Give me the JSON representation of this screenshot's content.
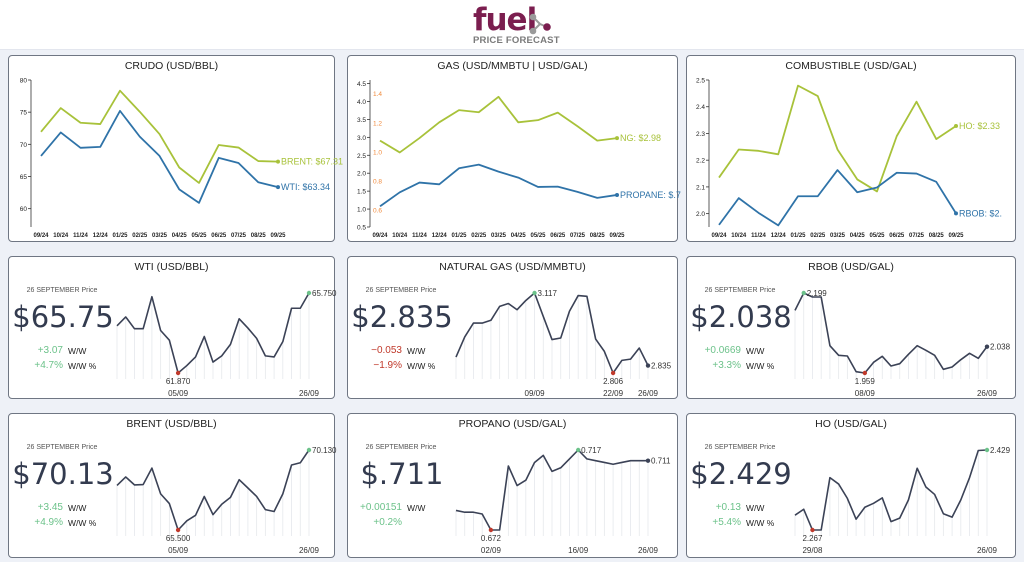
{
  "header": {
    "logo_text": "fuel",
    "logo_subtitle": "PRICE FORECAST",
    "logo_color": "#7b1e4f"
  },
  "colors": {
    "green_series": "#a8c23a",
    "blue_series": "#2f73a8",
    "spark_line": "#3b4256",
    "right_axis": "#f08a3c",
    "up": "#6cc28a",
    "down": "#c0392b"
  },
  "chart_data": [
    {
      "type": "line",
      "title": "CRUDO (USD/BBL)",
      "categories": [
        "09/24",
        "10/24",
        "11/24",
        "12/24",
        "01/25",
        "02/25",
        "03/25",
        "04/25",
        "05/25",
        "06/25",
        "07/25",
        "08/25",
        "09/25"
      ],
      "yticks": [
        60,
        65,
        70,
        75,
        80
      ],
      "ylim": [
        57.15,
        80
      ],
      "series": [
        {
          "name": "BRENT",
          "end_label": "BRENT: $67.31",
          "color": "#a8c23a",
          "values": [
            71.95,
            75.64,
            73.35,
            73.15,
            78.34,
            75.07,
            71.6,
            66.4,
            64.0,
            69.9,
            69.5,
            67.4,
            67.31
          ]
        },
        {
          "name": "WTI",
          "end_label": "WTI: $63.34",
          "color": "#2f73a8",
          "values": [
            68.2,
            71.85,
            69.46,
            69.6,
            75.2,
            71.2,
            68.2,
            63.0,
            60.9,
            67.9,
            67.1,
            64.1,
            63.34
          ]
        }
      ]
    },
    {
      "type": "line",
      "title": "GAS (USD/MMBTU | USD/GAL)",
      "categories": [
        "09/24",
        "10/24",
        "11/24",
        "12/24",
        "01/25",
        "02/25",
        "03/25",
        "04/25",
        "05/25",
        "06/25",
        "07/25",
        "08/25",
        "09/25"
      ],
      "yticks": [
        "0.5",
        "1.0",
        "1.5",
        "2.0",
        "2.5",
        "3.0",
        "3.5",
        "4.0",
        "4.5"
      ],
      "ylim": [
        0.5,
        4.6
      ],
      "y2ticks": [
        "0.6",
        "0.8",
        "1.0",
        "1.2",
        "1.4"
      ],
      "y2lim": [
        0.485,
        1.494
      ],
      "series": [
        {
          "name": "NG",
          "end_label": "NG: $2.98",
          "color": "#a8c23a",
          "axis": "left",
          "values": [
            2.91,
            2.58,
            2.98,
            3.42,
            3.76,
            3.7,
            4.13,
            3.42,
            3.48,
            3.69,
            3.31,
            2.91,
            2.98
          ]
        },
        {
          "name": "PROPANE",
          "end_label": "PROPANE: $.7",
          "color": "#2f73a8",
          "axis": "right",
          "values": [
            0.627,
            0.723,
            0.79,
            0.778,
            0.888,
            0.913,
            0.865,
            0.824,
            0.76,
            0.762,
            0.726,
            0.685,
            0.705
          ]
        }
      ]
    },
    {
      "type": "line",
      "title": "COMBUSTIBLE (USD/GAL)",
      "categories": [
        "09/24",
        "10/24",
        "11/24",
        "12/24",
        "01/25",
        "02/25",
        "03/25",
        "04/25",
        "05/25",
        "06/25",
        "07/25",
        "08/25",
        "09/25"
      ],
      "yticks": [
        "2.0",
        "2.1",
        "2.2",
        "2.3",
        "2.4",
        "2.5"
      ],
      "ylim": [
        1.95,
        2.5
      ],
      "series": [
        {
          "name": "HO",
          "end_label": "HO: $2.33",
          "color": "#a8c23a",
          "values": [
            2.135,
            2.24,
            2.235,
            2.222,
            2.479,
            2.44,
            2.24,
            2.128,
            2.083,
            2.29,
            2.419,
            2.279,
            2.328
          ]
        },
        {
          "name": "RBOB",
          "end_label": "RBOB: $2.",
          "color": "#2f73a8",
          "values": [
            1.958,
            2.058,
            2.003,
            1.956,
            2.065,
            2.065,
            2.163,
            2.08,
            2.098,
            2.153,
            2.15,
            2.119,
            2.001
          ]
        }
      ]
    },
    {
      "type": "line",
      "title": "WTI (USD/BBL)",
      "values": [
        64.16,
        64.59,
        64.02,
        64.02,
        65.57,
        63.93,
        63.46,
        61.87,
        62.23,
        62.65,
        63.64,
        62.4,
        62.7,
        63.26,
        64.5,
        64.05,
        63.55,
        62.7,
        62.65,
        63.39,
        65.01,
        65.01,
        65.75
      ],
      "min_label": "61.870",
      "max_label": "65.750",
      "last_label": "",
      "ticks": [
        {
          "index": 7,
          "label": "05/09"
        },
        {
          "index": 22,
          "label": "26/09"
        }
      ]
    },
    {
      "type": "line",
      "title": "NATURAL GAS (USD/MMBTU)",
      "values": [
        2.868,
        2.946,
        3.0,
        3.0,
        3.011,
        3.065,
        3.076,
        3.052,
        3.088,
        3.117,
        3.026,
        2.936,
        2.942,
        3.046,
        3.107,
        3.104,
        2.938,
        2.89,
        2.806,
        2.855,
        2.86,
        2.903,
        2.835
      ],
      "min_label": "2.806",
      "max_label": "3.117",
      "last_label": "2.835",
      "ticks": [
        {
          "index": 9,
          "label": "09/09"
        },
        {
          "index": 18,
          "label": "22/09"
        },
        {
          "index": 22,
          "label": "26/09"
        }
      ]
    },
    {
      "type": "line",
      "title": "RBOB (USD/GAL)",
      "values": [
        2.147,
        2.199,
        2.187,
        2.187,
        2.041,
        2.012,
        2.01,
        1.963,
        1.959,
        1.991,
        2.009,
        1.98,
        1.987,
        2.015,
        2.041,
        2.027,
        2.012,
        1.97,
        1.977,
        1.999,
        2.018,
        2.003,
        2.038
      ],
      "min_label": "1.959",
      "max_label": "2.199",
      "last_label": "2.038",
      "ticks": [
        {
          "index": 8,
          "label": "08/09"
        },
        {
          "index": 22,
          "label": "26/09"
        }
      ]
    },
    {
      "type": "line",
      "title": "BRENT (USD/BBL)",
      "values": [
        68.08,
        68.57,
        68.11,
        68.13,
        69.08,
        67.59,
        67.03,
        65.5,
        66.03,
        66.35,
        67.44,
        66.39,
        66.99,
        67.39,
        68.41,
        67.93,
        67.44,
        66.68,
        66.57,
        67.59,
        69.26,
        69.39,
        70.13
      ],
      "min_label": "65.500",
      "max_label": "70.130",
      "last_label": "",
      "ticks": [
        {
          "index": 7,
          "label": "05/09"
        },
        {
          "index": 22,
          "label": "26/09"
        }
      ]
    },
    {
      "type": "line",
      "title": "PROPANO (USD/GAL)",
      "values": [
        0.683,
        0.682,
        0.682,
        0.681,
        0.672,
        0.672,
        0.708,
        0.697,
        0.7,
        0.71,
        0.714,
        0.705,
        0.707,
        0.712,
        0.717,
        0.712,
        0.711,
        0.71,
        0.709,
        0.71,
        0.711,
        0.711,
        0.711
      ],
      "min_label": "0.672",
      "max_label": "0.717",
      "last_label": "0.711",
      "ticks": [
        {
          "index": 4,
          "label": "02/09"
        },
        {
          "index": 14,
          "label": "16/09"
        },
        {
          "index": 22,
          "label": "26/09"
        }
      ]
    },
    {
      "type": "line",
      "title": "HO (USD/GAL)",
      "values": [
        2.297,
        2.309,
        2.267,
        2.267,
        2.373,
        2.36,
        2.331,
        2.289,
        2.313,
        2.321,
        2.332,
        2.284,
        2.291,
        2.328,
        2.392,
        2.354,
        2.339,
        2.3,
        2.293,
        2.328,
        2.373,
        2.428,
        2.429
      ],
      "min_label": "2.267",
      "max_label": "2.429",
      "last_label": "",
      "ticks": [
        {
          "index": 2,
          "label": "29/08"
        },
        {
          "index": 22,
          "label": "26/09"
        }
      ]
    }
  ],
  "cards": [
    {
      "date_label": "26 SEPTEMBER Price",
      "price": "$65.75",
      "change": "+3.07",
      "change_label": "W/W",
      "change_pct": "+4.7%",
      "change_pct_label": "W/W %",
      "trend": "up"
    },
    {
      "date_label": "26 SEPTEMBER Price",
      "price": "$2.835",
      "change": "−0.053",
      "change_label": "W/W",
      "change_pct": "−1.9%",
      "change_pct_label": "W/W %",
      "trend": "down"
    },
    {
      "date_label": "26 SEPTEMBER Price",
      "price": "$2.038",
      "change": "+0.0669",
      "change_label": "W/W",
      "change_pct": "+3.3%",
      "change_pct_label": "W/W %",
      "trend": "up"
    },
    {
      "date_label": "26 SEPTEMBER Price",
      "price": "$70.13",
      "change": "+3.45",
      "change_label": "W/W",
      "change_pct": "+4.9%",
      "change_pct_label": "W/W %",
      "trend": "up"
    },
    {
      "date_label": "26 SEPTEMBER Price",
      "price": "$.711",
      "change": "+0.00151",
      "change_label": "W/W",
      "change_pct": "+0.2%",
      "change_pct_label": "",
      "trend": "up"
    },
    {
      "date_label": "26 SEPTEMBER Price",
      "price": "$2.429",
      "change": "+0.13",
      "change_label": "W/W",
      "change_pct": "+5.4%",
      "change_pct_label": "W/W %",
      "trend": "up"
    }
  ]
}
